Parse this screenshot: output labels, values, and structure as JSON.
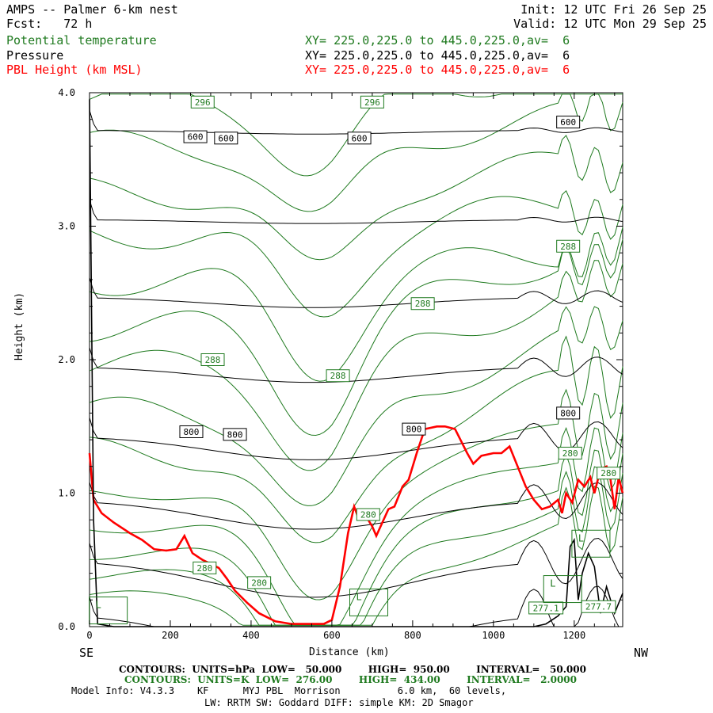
{
  "header": {
    "title": "AMPS -- Palmer 6-km nest",
    "fcst": "Fcst:   72 h",
    "init": "Init: 12 UTC Fri 26 Sep 25",
    "valid": "Valid: 12 UTC Mon 29 Sep 25"
  },
  "legend": [
    {
      "label": "Potential temperature",
      "xy": "XY= 225.0,225.0 to 445.0,225.0,av=  6",
      "color": "#1f7a1f"
    },
    {
      "label": "Pressure",
      "xy": "XY= 225.0,225.0 to 445.0,225.0,av=  6",
      "color": "#000000"
    },
    {
      "label": "PBL Height (km MSL)",
      "xy": "XY= 225.0,225.0 to 445.0,225.0,av=  6",
      "color": "#ff0000"
    }
  ],
  "axes": {
    "xlabel": "Distance (km)",
    "ylabel": "Height (km)",
    "left_end": "SE",
    "right_end": "NW"
  },
  "footer": {
    "pressure_contours": "CONTOURS:  UNITS=hPa  LOW=   50.000        HIGH=  950.00        INTERVAL=   50.000",
    "theta_contours": "CONTOURS:  UNITS=K  LOW=  276.00        HIGH=  434.00        INTERVAL=   2.0000",
    "model_info": "Model Info: V4.3.3    KF      MYJ PBL  Morrison          6.0 km,  60 levels,",
    "model_info2": "LW: RRTM SW: Goddard DIFF: simple KM: 2D Smagor"
  },
  "chart_data": {
    "type": "line",
    "xlim": [
      0,
      1320
    ],
    "ylim": [
      0,
      4.0
    ],
    "x_ticks": [
      0,
      200,
      400,
      600,
      800,
      1000,
      1200
    ],
    "y_ticks": [
      0.0,
      1.0,
      2.0,
      3.0,
      4.0
    ],
    "y_tick_labels": [
      "0.0",
      "1.0",
      "2.0",
      "3.0",
      "4.0"
    ],
    "series": [
      {
        "name": "PBL Height (km MSL)",
        "color": "#ff0000",
        "x": [
          0,
          10,
          30,
          60,
          100,
          130,
          160,
          190,
          215,
          235,
          255,
          280,
          300,
          320,
          340,
          360,
          390,
          420,
          460,
          500,
          540,
          580,
          600,
          620,
          640,
          655,
          665,
          680,
          700,
          710,
          725,
          740,
          755,
          775,
          790,
          810,
          830,
          860,
          880,
          905,
          935,
          950,
          970,
          1000,
          1020,
          1040,
          1060,
          1080,
          1100,
          1120,
          1140,
          1160,
          1170,
          1180,
          1195,
          1210,
          1225,
          1240,
          1250,
          1265,
          1280,
          1290,
          1300,
          1310,
          1320
        ],
        "y": [
          1.3,
          0.95,
          0.85,
          0.78,
          0.7,
          0.65,
          0.58,
          0.57,
          0.58,
          0.68,
          0.55,
          0.5,
          0.47,
          0.44,
          0.36,
          0.27,
          0.18,
          0.1,
          0.04,
          0.02,
          0.02,
          0.02,
          0.05,
          0.3,
          0.7,
          0.9,
          0.82,
          0.85,
          0.75,
          0.68,
          0.78,
          0.88,
          0.9,
          1.05,
          1.1,
          1.3,
          1.48,
          1.5,
          1.5,
          1.48,
          1.3,
          1.22,
          1.28,
          1.3,
          1.3,
          1.35,
          1.2,
          1.05,
          0.95,
          0.88,
          0.9,
          0.95,
          0.85,
          1.0,
          0.93,
          1.1,
          1.05,
          1.12,
          1.0,
          1.18,
          1.2,
          1.1,
          0.88,
          1.12,
          1.0
        ]
      },
      {
        "name": "",
        "color": "#000000",
        "x": [
          0,
          10,
          20,
          40,
          60,
          100,
          150,
          200,
          250,
          300,
          350,
          400,
          450,
          500,
          550,
          600,
          650,
          700,
          750,
          800,
          850,
          900,
          950,
          1000,
          1050,
          1100,
          1130,
          1160,
          1180,
          1190,
          1200,
          1210,
          1220,
          1235,
          1250,
          1265,
          1280,
          1300,
          1320
        ],
        "y": [
          3.95,
          0.8,
          0.02,
          0.01,
          0.0,
          0.0,
          0.0,
          0.0,
          0.0,
          0.0,
          0.0,
          0.0,
          0.0,
          0.0,
          0.0,
          0.0,
          0.0,
          0.0,
          0.0,
          0.0,
          0.0,
          0.0,
          0.0,
          0.0,
          0.0,
          0.0,
          0.02,
          0.08,
          0.15,
          0.6,
          0.65,
          0.2,
          0.4,
          0.55,
          0.45,
          0.1,
          0.3,
          0.1,
          0.25
        ]
      }
    ],
    "pressure_contours": [
      {
        "label": "600",
        "y": 3.72,
        "tilt": 0.03
      },
      {
        "label": "",
        "y": 3.05,
        "tilt": 0.03
      },
      {
        "label": "",
        "y": 2.47,
        "tilt": 0.08
      },
      {
        "label": "",
        "y": 1.95,
        "tilt": 0.12
      },
      {
        "label": "800",
        "y": 1.43,
        "tilt": 0.18
      },
      {
        "label": "",
        "y": 0.95,
        "tilt": 0.22
      },
      {
        "label": "",
        "y": 0.5,
        "tilt": 0.28
      },
      {
        "label": "",
        "y": 0.1,
        "tilt": 0.35
      }
    ],
    "theta_labels": [
      {
        "label": "296",
        "x": 280,
        "y": 3.93
      },
      {
        "label": "296",
        "x": 700,
        "y": 3.93
      },
      {
        "label": "288",
        "x": 1185,
        "y": 2.85
      },
      {
        "label": "288",
        "x": 825,
        "y": 2.42
      },
      {
        "label": "288",
        "x": 305,
        "y": 2.0
      },
      {
        "label": "288",
        "x": 615,
        "y": 1.88
      },
      {
        "label": "280",
        "x": 1190,
        "y": 1.3
      },
      {
        "label": "280",
        "x": 1285,
        "y": 1.15
      },
      {
        "label": "280",
        "x": 690,
        "y": 0.84
      },
      {
        "label": "280",
        "x": 285,
        "y": 0.44
      },
      {
        "label": "280",
        "x": 420,
        "y": 0.33
      },
      {
        "label": "277.7",
        "x": 1260,
        "y": 0.15
      },
      {
        "label": "277.1",
        "x": 1130,
        "y": 0.14
      }
    ],
    "pressure_labels": [
      {
        "label": "600",
        "x": 262,
        "y": 3.67
      },
      {
        "label": "600",
        "x": 338,
        "y": 3.66
      },
      {
        "label": "600",
        "x": 668,
        "y": 3.66
      },
      {
        "label": "600",
        "x": 1185,
        "y": 3.78
      },
      {
        "label": "800",
        "x": 252,
        "y": 1.46
      },
      {
        "label": "800",
        "x": 360,
        "y": 1.44
      },
      {
        "label": "800",
        "x": 803,
        "y": 1.48
      },
      {
        "label": "800",
        "x": 1185,
        "y": 1.6
      }
    ],
    "L_labels": [
      {
        "label": "L",
        "x": 15,
        "y": 0.08
      },
      {
        "label": "L",
        "x": 660,
        "y": 0.14
      },
      {
        "label": "L",
        "x": 1140,
        "y": 0.24
      },
      {
        "label": "L",
        "x": 1210,
        "y": 0.58
      }
    ]
  }
}
